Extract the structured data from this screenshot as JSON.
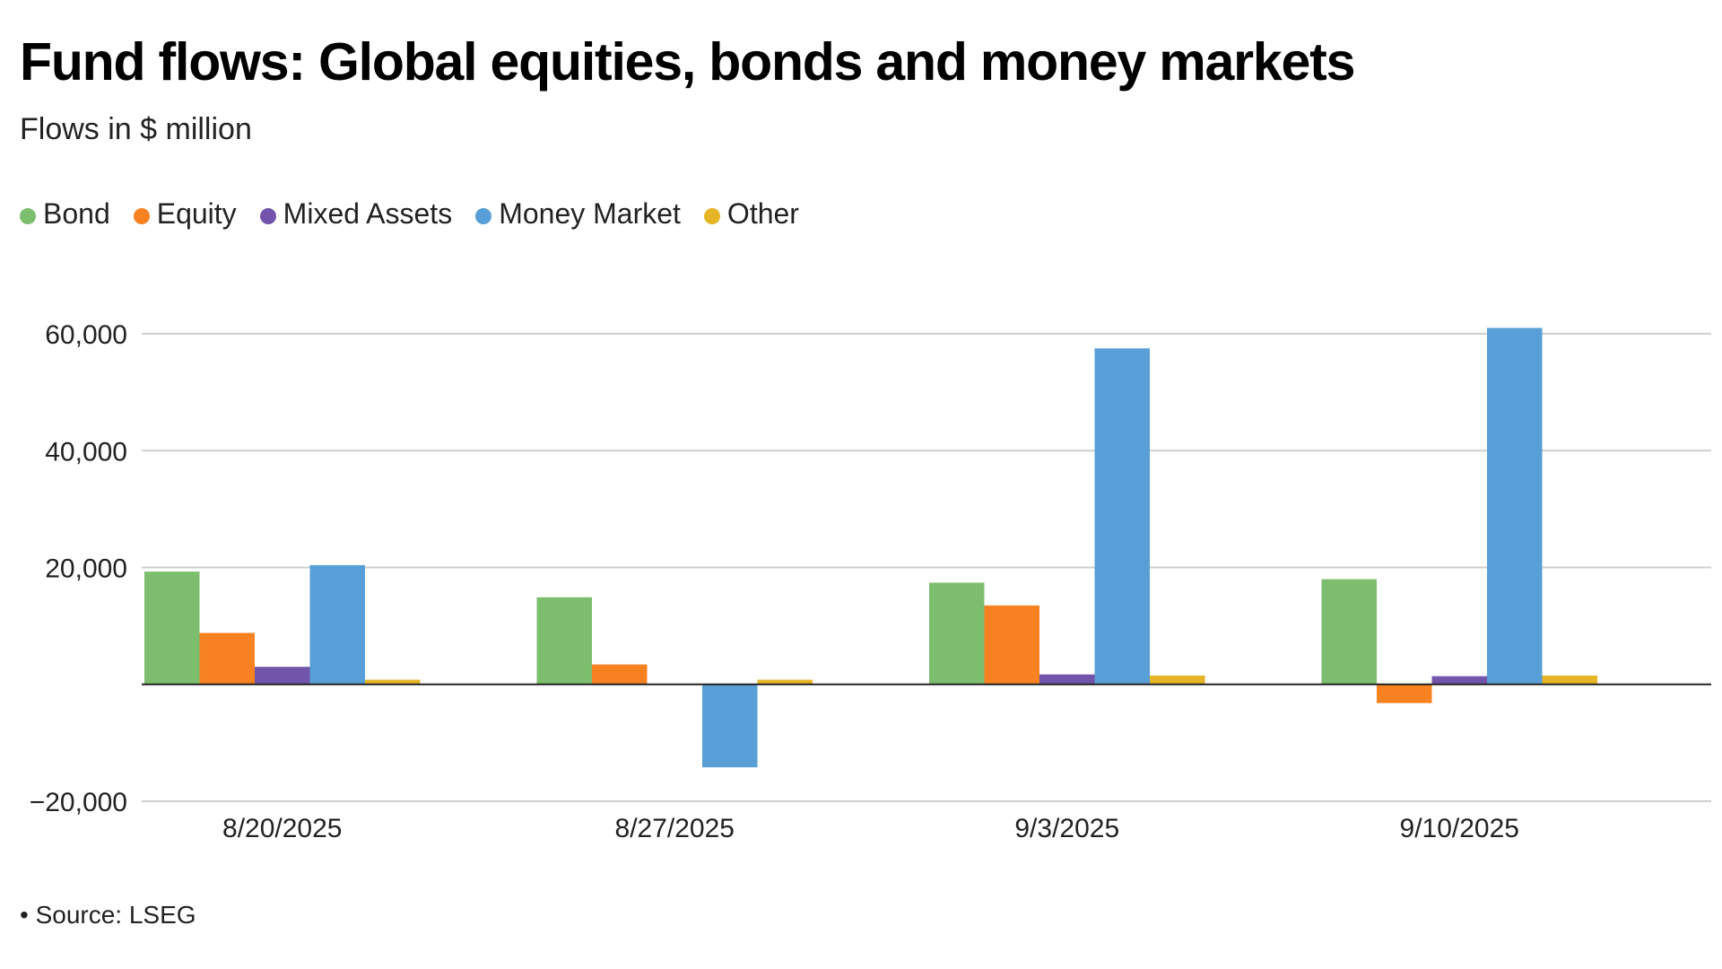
{
  "title": "Fund flows: Global equities, bonds and money markets",
  "subtitle": "Flows in $ million",
  "source_note": "• Source: LSEG",
  "legend": [
    {
      "name": "Bond",
      "color": "#7dbe6e"
    },
    {
      "name": "Equity",
      "color": "#f88121"
    },
    {
      "name": "Mixed Assets",
      "color": "#7254ab"
    },
    {
      "name": "Money Market",
      "color": "#579fd6"
    },
    {
      "name": "Other",
      "color": "#e6b526"
    }
  ],
  "chart_data": {
    "type": "bar",
    "title": "Fund flows: Global equities, bonds and money markets",
    "subtitle": "Flows in $ million",
    "categories": [
      "8/20/2025",
      "8/27/2025",
      "9/3/2025",
      "9/10/2025"
    ],
    "series": [
      {
        "name": "Bond",
        "color": "#7dbe6e",
        "values": [
          19300,
          14900,
          17400,
          18000
        ]
      },
      {
        "name": "Equity",
        "color": "#f88121",
        "values": [
          8800,
          3400,
          13500,
          -3200
        ]
      },
      {
        "name": "Mixed Assets",
        "color": "#7254ab",
        "values": [
          3000,
          0,
          1700,
          1400
        ]
      },
      {
        "name": "Money Market",
        "color": "#579fd6",
        "values": [
          20400,
          -14200,
          57500,
          61000
        ]
      },
      {
        "name": "Other",
        "color": "#e6b526",
        "values": [
          800,
          800,
          1500,
          1500
        ]
      }
    ],
    "ylim": [
      -20000,
      60000
    ],
    "yticks": [
      -20000,
      0,
      20000,
      40000,
      60000
    ],
    "ytick_labels": [
      "−20,000",
      "",
      "20,000",
      "40,000",
      "60,000"
    ],
    "grid": true,
    "legend_position": "top-left",
    "xlabel": "",
    "ylabel": ""
  }
}
